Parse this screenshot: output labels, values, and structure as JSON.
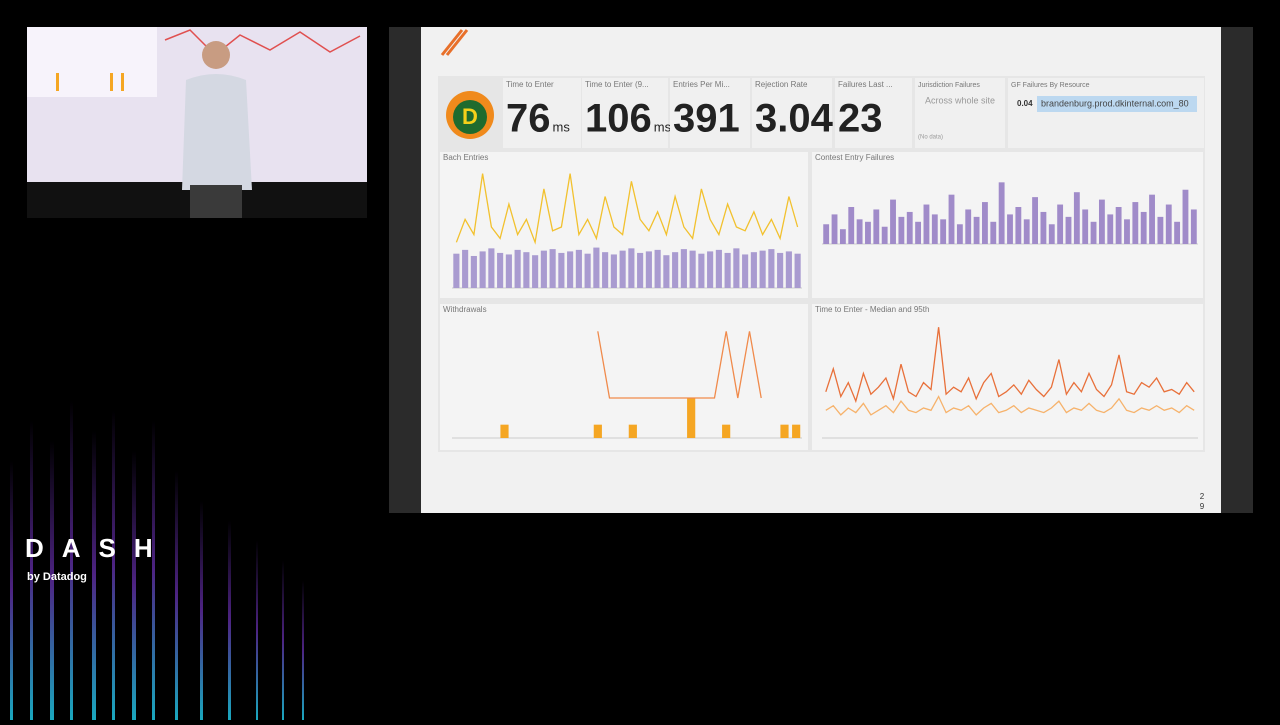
{
  "event": {
    "logo": "DASH",
    "byline": "by Datadog"
  },
  "dashboard": {
    "query_values": [
      {
        "title": "Time to Enter",
        "value": 76,
        "unit": "ms"
      },
      {
        "title": "Time to Enter (9...",
        "value": 106,
        "unit": "ms"
      },
      {
        "title": "Entries Per Mi...",
        "value": 391
      },
      {
        "title": "Rejection Rate",
        "value": 3.04,
        "unit": "%"
      },
      {
        "title": "Failures Last ...",
        "value": 23
      }
    ],
    "jurisdiction": {
      "title": "Jurisdiction Failures",
      "text": "Across whole site",
      "note": "(No data)"
    },
    "toplist": {
      "title": "GF Failures By Resource",
      "value": 0.04,
      "label": "brandenburg.prod.dkinternal.com_80"
    },
    "charts": [
      {
        "title": "Bach Entries",
        "ylim": [
          0,
          1.6
        ],
        "series": [
          {
            "kind": "bar",
            "color": "#a99bd0",
            "values": [
              0.45,
              0.5,
              0.42,
              0.48,
              0.52,
              0.46,
              0.44,
              0.5,
              0.47,
              0.43,
              0.49,
              0.51,
              0.46,
              0.48,
              0.5,
              0.45,
              0.53,
              0.47,
              0.44,
              0.49,
              0.52,
              0.46,
              0.48,
              0.5,
              0.43,
              0.47,
              0.51,
              0.49,
              0.45,
              0.48,
              0.5,
              0.46,
              0.52,
              0.44,
              0.47,
              0.49,
              0.51,
              0.46,
              0.48,
              0.45
            ]
          },
          {
            "kind": "line",
            "color": "#f2c12e",
            "values": [
              0.6,
              0.9,
              0.7,
              1.5,
              0.8,
              0.65,
              1.1,
              0.7,
              0.9,
              0.6,
              1.3,
              0.75,
              0.8,
              1.5,
              0.7,
              0.9,
              0.65,
              1.2,
              0.8,
              0.7,
              1.4,
              0.9,
              0.75,
              1.0,
              0.7,
              1.2,
              0.8,
              0.65,
              1.3,
              0.9,
              0.7,
              1.1,
              0.8,
              0.75,
              1.0,
              0.7,
              0.9,
              0.65,
              1.2,
              0.8
            ]
          }
        ]
      },
      {
        "title": "Contest Entry Failures",
        "ylim": [
          0,
          30
        ],
        "series": [
          {
            "kind": "bar",
            "color": "#a08bc9",
            "values": [
              8,
              12,
              6,
              15,
              10,
              9,
              14,
              7,
              18,
              11,
              13,
              9,
              16,
              12,
              10,
              20,
              8,
              14,
              11,
              17,
              9,
              25,
              12,
              15,
              10,
              19,
              13,
              8,
              16,
              11,
              21,
              14,
              9,
              18,
              12,
              15,
              10,
              17,
              13,
              20,
              11,
              16,
              9,
              22,
              14
            ]
          }
        ]
      },
      {
        "title": "Withdrawals",
        "ylim": [
          0,
          9
        ],
        "series": [
          {
            "kind": "bar",
            "color": "#f5a623",
            "values": [
              0,
              0,
              0,
              0,
              1,
              0,
              0,
              0,
              0,
              0,
              0,
              0,
              1,
              0,
              0,
              1,
              0,
              0,
              0,
              0,
              3,
              0,
              0,
              1,
              0,
              0,
              0,
              0,
              1,
              1
            ]
          },
          {
            "kind": "line",
            "color": "#f08a4b",
            "values": [
              null,
              null,
              null,
              null,
              null,
              null,
              null,
              null,
              null,
              null,
              null,
              null,
              8,
              3,
              3,
              3,
              3,
              3,
              3,
              3,
              3,
              3,
              3,
              8,
              3,
              8,
              3,
              null,
              null,
              null
            ]
          }
        ]
      },
      {
        "title": "Time to Enter - Median and 95th",
        "ylim": [
          0,
          260
        ],
        "series": [
          {
            "kind": "line",
            "color": "#e8703a",
            "values": [
              100,
              150,
              90,
              120,
              80,
              140,
              95,
              110,
              130,
              85,
              160,
              100,
              90,
              120,
              105,
              240,
              95,
              110,
              100,
              130,
              85,
              120,
              140,
              90,
              100,
              115,
              95,
              125,
              105,
              90,
              110,
              170,
              95,
              120,
              100,
              140,
              105,
              90,
              115,
              180,
              100,
              95,
              120,
              110,
              130,
              100,
              105,
              95,
              120,
              100
            ]
          },
          {
            "kind": "line",
            "color": "#f6b26b",
            "values": [
              60,
              70,
              50,
              65,
              55,
              75,
              50,
              60,
              70,
              55,
              80,
              60,
              55,
              65,
              60,
              90,
              55,
              65,
              60,
              70,
              50,
              65,
              75,
              55,
              60,
              70,
              55,
              65,
              60,
              55,
              65,
              80,
              55,
              65,
              60,
              75,
              60,
              55,
              65,
              85,
              60,
              55,
              65,
              60,
              70,
              60,
              65,
              55,
              70,
              60
            ]
          }
        ]
      }
    ]
  },
  "page": [
    "2",
    "9"
  ]
}
